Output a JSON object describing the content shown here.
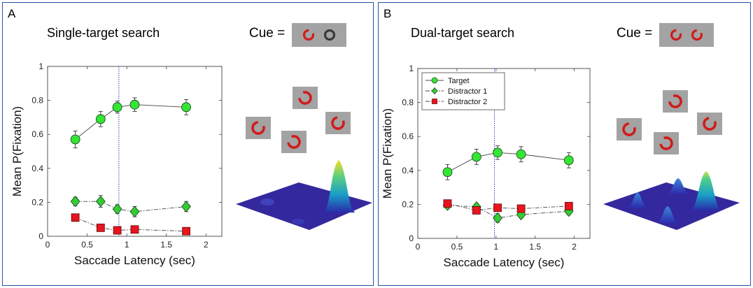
{
  "panels": [
    {
      "letter": "A",
      "title": "Single-target search",
      "cue_label": "Cue ="
    },
    {
      "letter": "B",
      "title": "Dual-target search",
      "cue_label": "Cue ="
    }
  ],
  "colors": {
    "target": "#33e633",
    "distractor1": "#33cc33",
    "distractor2": "#e8141e",
    "reference_line": "#2d3fd0",
    "stimulus_bg": "#a3a3a3",
    "ring_red": "#d11b1b",
    "ring_dark": "#3a3a3a"
  },
  "icons": {
    "cue_a": [
      "red-ring-icon",
      "dark-ring-icon"
    ],
    "cue_b": [
      "red-ring-icon",
      "red-ring-icon"
    ],
    "stimulus": "red-broken-ring-icon",
    "surface": "fixation-density-surface"
  },
  "chart_data": [
    {
      "type": "line",
      "title": "Single-target search",
      "xlabel": "Saccade Latency (sec)",
      "ylabel": "Mean P(Fixation)",
      "xlim": [
        0,
        2.2
      ],
      "ylim": [
        0,
        1
      ],
      "xticks": [
        0,
        0.5,
        1,
        1.5,
        2
      ],
      "xtick_labels": [
        "0",
        "0.5",
        "1",
        "1.5",
        "2"
      ],
      "yticks": [
        0,
        0.2,
        0.4,
        0.6,
        0.8,
        1
      ],
      "ytick_labels": [
        "0",
        "0.2",
        "0.4",
        "0.6",
        "0.8",
        "1"
      ],
      "reference_x": 0.9,
      "legend": null,
      "series": [
        {
          "key": "target",
          "marker": "circle",
          "line": "solid",
          "x": [
            0.35,
            0.67,
            0.88,
            1.1,
            1.75
          ],
          "y": [
            0.57,
            0.69,
            0.76,
            0.775,
            0.76
          ],
          "err": [
            0.05,
            0.045,
            0.035,
            0.04,
            0.045
          ]
        },
        {
          "key": "distractor1",
          "marker": "diamond",
          "line": "dashdot",
          "x": [
            0.35,
            0.67,
            0.88,
            1.1,
            1.75
          ],
          "y": [
            0.205,
            0.205,
            0.16,
            0.145,
            0.175
          ],
          "err": [
            0.025,
            0.035,
            0.025,
            0.03,
            0.03
          ]
        },
        {
          "key": "distractor2",
          "marker": "square",
          "line": "dashdot",
          "x": [
            0.35,
            0.67,
            0.88,
            1.1,
            1.75
          ],
          "y": [
            0.11,
            0.05,
            0.035,
            0.04,
            0.03
          ],
          "err": [
            0.015,
            0.012,
            0.01,
            0.01,
            0.01
          ]
        }
      ]
    },
    {
      "type": "line",
      "title": "Dual-target search",
      "xlabel": "Saccade Latency (sec)",
      "ylabel": "Mean P(Fixation)",
      "xlim": [
        0,
        2.2
      ],
      "ylim": [
        0,
        1
      ],
      "xticks": [
        0,
        0.5,
        1,
        1.5,
        2
      ],
      "xtick_labels": [
        "0",
        "0.5",
        "1",
        "1.5",
        "2"
      ],
      "yticks": [
        0,
        0.2,
        0.4,
        0.6,
        0.8,
        1
      ],
      "ytick_labels": [
        "0",
        "0.2",
        "0.4",
        "0.6",
        "0.8",
        "1"
      ],
      "reference_x": 0.98,
      "legend": "top-left",
      "series": [
        {
          "key": "target",
          "name": "Target",
          "marker": "circle",
          "line": "solid",
          "x": [
            0.38,
            0.75,
            1.02,
            1.32,
            1.93
          ],
          "y": [
            0.39,
            0.48,
            0.505,
            0.495,
            0.46
          ],
          "err": [
            0.045,
            0.045,
            0.04,
            0.045,
            0.045
          ]
        },
        {
          "key": "distractor1",
          "name": "Distractor 1",
          "marker": "diamond",
          "line": "dashdot",
          "x": [
            0.38,
            0.75,
            1.02,
            1.32,
            1.93
          ],
          "y": [
            0.195,
            0.185,
            0.12,
            0.14,
            0.16
          ],
          "err": [
            0.02,
            0.02,
            0.025,
            0.02,
            0.02
          ]
        },
        {
          "key": "distractor2",
          "name": "Distractor 2",
          "marker": "square",
          "line": "dashdot",
          "x": [
            0.38,
            0.75,
            1.02,
            1.32,
            1.93
          ],
          "y": [
            0.205,
            0.165,
            0.18,
            0.175,
            0.19
          ],
          "err": [
            0.02,
            0.015,
            0.015,
            0.015,
            0.015
          ]
        }
      ]
    }
  ]
}
